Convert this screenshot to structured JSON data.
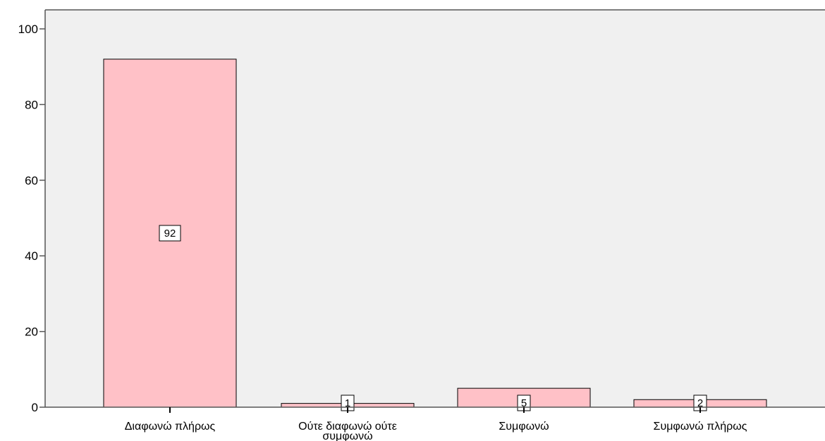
{
  "chart_data": {
    "type": "bar",
    "categories": [
      "Διαφωνώ πλήρως",
      "Ούτε διαφωνώ ούτε συμφωνώ",
      "Συμφωνώ",
      "Συμφωνώ πλήρως"
    ],
    "category_lines": [
      [
        "Διαφωνώ πλήρως"
      ],
      [
        "Ούτε διαφωνώ ούτε",
        "συμφωνώ"
      ],
      [
        "Συμφωνώ"
      ],
      [
        "Συμφωνώ πλήρως"
      ]
    ],
    "values": [
      92,
      1,
      5,
      2
    ],
    "data_labels": [
      "92",
      "1",
      "5",
      "2"
    ],
    "yticks": [
      0,
      20,
      40,
      60,
      80,
      100
    ],
    "ytick_labels": [
      "0",
      "20",
      "40",
      "60",
      "80",
      "100"
    ],
    "ylim": [
      0,
      100
    ],
    "grid": false,
    "colors": {
      "bar_fill": "#ffc1c7",
      "plot_bg": "#f0f0f0",
      "bar_stroke": "#000000"
    }
  }
}
